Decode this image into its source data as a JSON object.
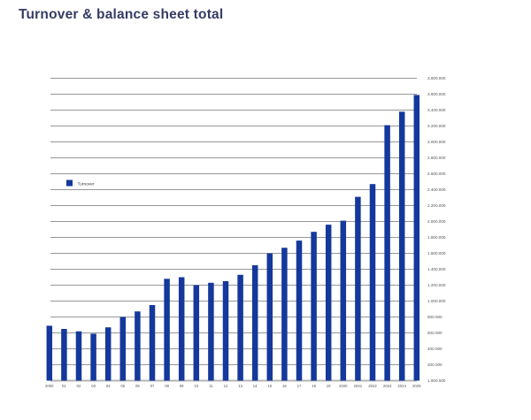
{
  "page": {
    "background_color": "#ffffff"
  },
  "chart_data": {
    "type": "bar",
    "title": "Turnover & balance sheet total",
    "title_color": "#363c63",
    "legend": [
      {
        "label": "Turnover",
        "color": "#14389b"
      }
    ],
    "legend_position": "inside-left",
    "grid": "horizontal",
    "gridline_color": "#979797",
    "baseline_color": "#b5b5b5",
    "tick_text_color": "#555555",
    "ylim": [
      0,
      3800000
    ],
    "y_tick_step": 200000,
    "right_axis_labels": [
      "3.800.000",
      "3.600.000",
      "3.400.000",
      "3.200.000",
      "3.000.000",
      "2.800.000",
      "2.600.000",
      "2.400.000",
      "2.200.000",
      "2.000.000",
      "1.800.000",
      "1.600.000",
      "1.400.000",
      "1.200.000",
      "1.000.000",
      "800.000",
      "600.000",
      "400.000",
      "200.000"
    ],
    "baseline_label": "1.600.000",
    "categories": [
      "2000",
      "01",
      "02",
      "03",
      "04",
      "05",
      "06",
      "07",
      "08",
      "09",
      "10",
      "11",
      "12",
      "13",
      "14",
      "15",
      "16",
      "17",
      "18",
      "19",
      "2020",
      "2021",
      "2022",
      "2023",
      "2024",
      "2025"
    ],
    "series": [
      {
        "name": "Turnover",
        "values": [
          690000,
          650000,
          620000,
          590000,
          670000,
          800000,
          870000,
          950000,
          1280000,
          1300000,
          1200000,
          1230000,
          1250000,
          1330000,
          1450000,
          1600000,
          1670000,
          1760000,
          1870000,
          1960000,
          2010000,
          2310000,
          2470000,
          3210000,
          3380000,
          3590000
        ]
      }
    ]
  }
}
